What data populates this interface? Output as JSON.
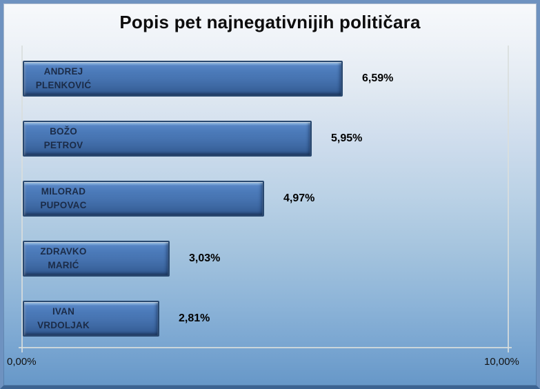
{
  "chart_data": {
    "type": "bar",
    "orientation": "horizontal",
    "title": "Popis pet najnegativnijih političara",
    "categories": [
      "ANDREJ PLENKOVIĆ",
      "BOŽO PETROV",
      "MILORAD PUPOVAC",
      "ZDRAVKO MARIĆ",
      "IVAN VRDOLJAK"
    ],
    "values": [
      6.59,
      5.95,
      4.97,
      3.03,
      2.81
    ],
    "bars": [
      {
        "line1": "ANDREJ",
        "line2": "PLENKOVIĆ",
        "value": 6.59,
        "value_label": "6,59%"
      },
      {
        "line1": "BOŽO",
        "line2": "PETROV",
        "value": 5.95,
        "value_label": "5,95%"
      },
      {
        "line1": "MILORAD",
        "line2": "PUPOVAC",
        "value": 4.97,
        "value_label": "4,97%"
      },
      {
        "line1": "ZDRAVKO",
        "line2": "MARIĆ",
        "value": 3.03,
        "value_label": "3,03%"
      },
      {
        "line1": "IVAN",
        "line2": "VRDOLJAK",
        "value": 2.81,
        "value_label": "2,81%"
      }
    ],
    "xlabel": "",
    "ylabel": "",
    "xlim": [
      0,
      10
    ],
    "x_tick_labels": [
      "0,00%",
      "10,00%"
    ],
    "grid": false,
    "legend": false,
    "value_labels_shown": true,
    "colors": {
      "bar_fill": "#4573b2",
      "bar_highlight": "#aed1f1",
      "bar_border": "#29486f",
      "bar_label_text": "#1b2b47",
      "value_label_text": "#000000",
      "title_text": "#0d0d0d",
      "axis_line": "#d9dedd",
      "tick_label_text": "#121212",
      "frame_border": "#6e92c0",
      "frame_border_bottom": "#3c6391",
      "background_top": "#f8fafc",
      "background_bottom": "#6596c7"
    }
  }
}
